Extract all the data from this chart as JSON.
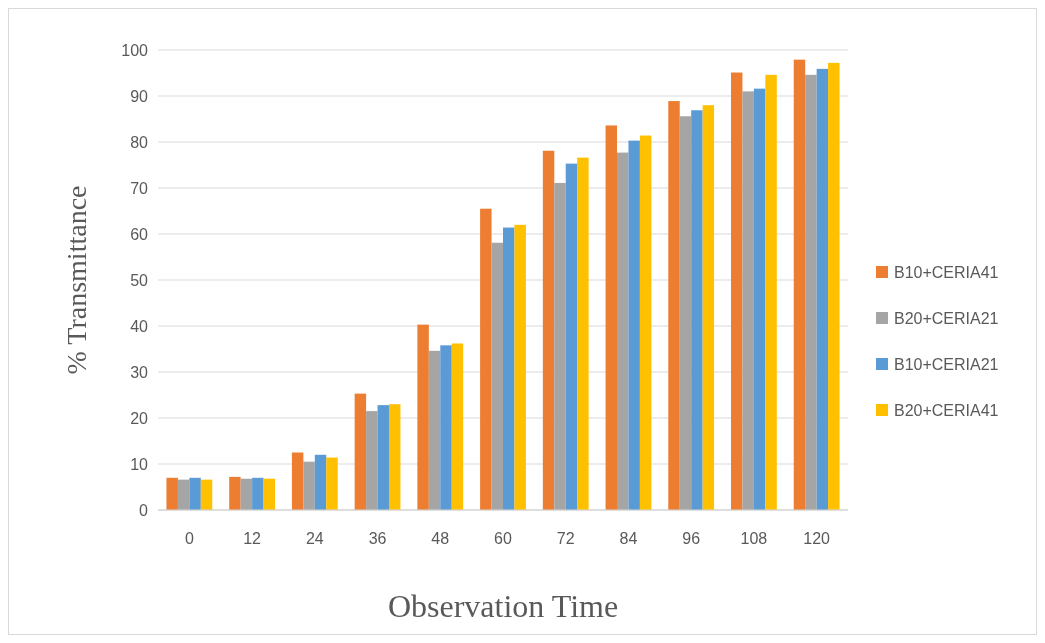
{
  "chart_data": {
    "type": "bar",
    "xlabel": "Observation Time",
    "ylabel": "% Transmittance",
    "categories": [
      "0",
      "12",
      "24",
      "36",
      "48",
      "60",
      "72",
      "84",
      "96",
      "108",
      "120"
    ],
    "series": [
      {
        "name": "B10+CERIA41",
        "color": "#ed7d31",
        "values": [
          7.0,
          7.2,
          12.5,
          25.3,
          40.3,
          65.5,
          78.1,
          83.6,
          88.9,
          95.1,
          97.9
        ]
      },
      {
        "name": "B20+CERIA21",
        "color": "#a5a5a5",
        "values": [
          6.6,
          6.8,
          10.5,
          21.5,
          34.6,
          58.1,
          71.1,
          77.7,
          85.6,
          91.0,
          94.6
        ]
      },
      {
        "name": "B10+CERIA21",
        "color": "#5b9bd5",
        "values": [
          7.0,
          7.0,
          12.0,
          22.8,
          35.8,
          61.4,
          75.3,
          80.3,
          86.9,
          91.6,
          95.9
        ]
      },
      {
        "name": "B20+CERIA41",
        "color": "#ffc000",
        "values": [
          6.6,
          6.8,
          11.4,
          23.0,
          36.2,
          62.0,
          76.6,
          81.4,
          88.0,
          94.6,
          97.2
        ]
      }
    ],
    "ylim": [
      0,
      100
    ],
    "yticks": [
      0,
      10,
      20,
      30,
      40,
      50,
      60,
      70,
      80,
      90,
      100
    ],
    "grid": "y",
    "legend": "right"
  }
}
